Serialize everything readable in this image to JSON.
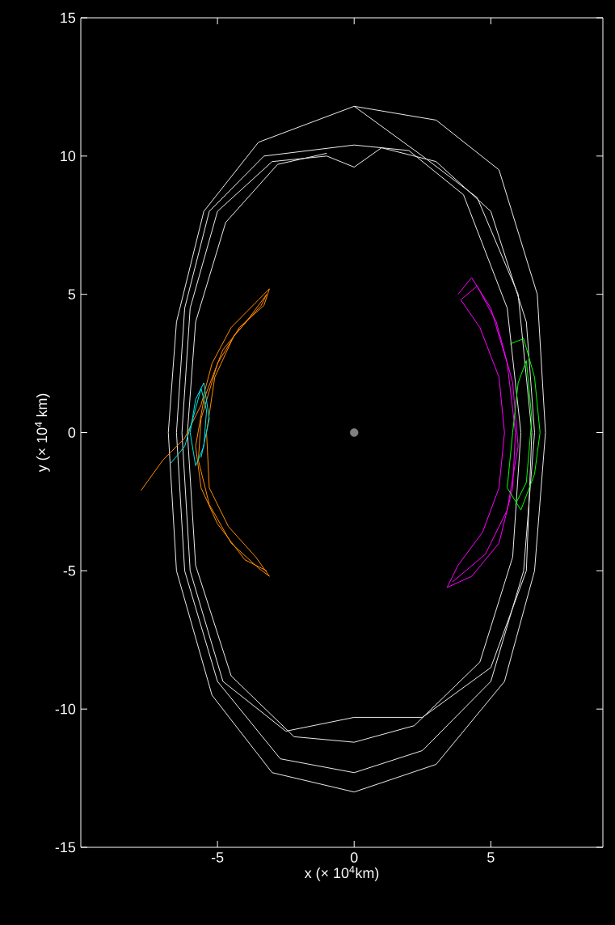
{
  "chart_data": {
    "type": "line",
    "xlabel": "x (× 10$^{4}$km)",
    "ylabel": "y (× 10$^{4}$ km)",
    "xlim": [
      -10,
      9.1
    ],
    "ylim": [
      -15,
      15
    ],
    "xticks": [
      -5,
      0,
      5
    ],
    "yticks": [
      -15,
      -10,
      -5,
      0,
      5,
      10,
      15
    ],
    "grid": false,
    "marker": "none",
    "series": [
      {
        "color": "#ebebeb",
        "x": [
          0,
          3,
          5.3,
          6.7,
          7,
          6.6,
          5.5,
          3,
          0,
          -3,
          -5.2,
          -6.5,
          -6.8,
          -6.5,
          -5.5,
          -3.5,
          0,
          2.5,
          4.5,
          6,
          6.5,
          6.3,
          5,
          2.5,
          0,
          -2.5,
          -4.8,
          -6,
          -6.3,
          -6,
          -5,
          -3,
          -1,
          0,
          1,
          3,
          5,
          6.3,
          6.6,
          6.2,
          5,
          2.5,
          0,
          -2.7,
          -5,
          -6.2,
          -6.5,
          -6.2,
          -5.3,
          -3.3,
          0,
          2,
          4,
          5.6,
          6.1,
          5.8,
          4.6,
          2.2,
          0,
          -2.2,
          -4.5,
          -5.8,
          -6.1,
          -5.8,
          -4.7,
          -2.8,
          -1
        ],
        "values": [
          11.8,
          11.3,
          9.5,
          5,
          0,
          -5,
          -9,
          -12,
          -13,
          -12.3,
          -9.5,
          -5,
          0,
          4,
          8,
          10.5,
          11.8,
          10,
          8.5,
          5,
          0,
          -5,
          -8.5,
          -10.3,
          -10.3,
          -10.8,
          -9,
          -5,
          0,
          4.5,
          8,
          9.8,
          10,
          9.6,
          10.3,
          9.8,
          8,
          4,
          0,
          -5,
          -9,
          -11.5,
          -12.3,
          -11.8,
          -9,
          -5,
          0,
          4.5,
          8,
          10,
          10.4,
          10.2,
          8.6,
          4.5,
          0,
          -4.5,
          -8.3,
          -10.6,
          -11.2,
          -11,
          -8.8,
          -4.8,
          0,
          4,
          7.6,
          9.7,
          10.1
        ]
      },
      {
        "color": "#ff8c00",
        "x": [
          -7.8,
          -7,
          -6.2,
          -5.6,
          -5.2,
          -4.5,
          -3.5,
          -3.1,
          -3.3,
          -4.2,
          -5,
          -5.6,
          -5.7,
          -5.3,
          -4.5,
          -3.5,
          -3.1,
          -3.6,
          -4.6,
          -5.3,
          -5.4,
          -5.1,
          -4.4,
          -3.4,
          -3.2,
          -3.8,
          -4.8,
          -5.5,
          -5.8,
          -5.6,
          -5,
          -4,
          -3.2
        ],
        "values": [
          -2.1,
          -1,
          -0.2,
          1,
          2.5,
          3.8,
          4.8,
          5.2,
          4.6,
          3.8,
          2.5,
          0.5,
          -1,
          -2.6,
          -4,
          -4.9,
          -5.2,
          -4.5,
          -3.4,
          -2,
          0,
          2,
          3.5,
          4.6,
          5,
          4.2,
          3,
          1.2,
          -0.5,
          -2,
          -3.3,
          -4.6,
          -5
        ]
      },
      {
        "color": "#00e5e5",
        "x": [
          -6.7,
          -6.2,
          -5.9,
          -5.6,
          -5.4,
          -5.5,
          -5.8,
          -6,
          -5.8,
          -5.5,
          -5.3,
          -5.6
        ],
        "values": [
          -1.1,
          -0.5,
          0.5,
          1.6,
          0.8,
          -0.5,
          -1.2,
          0,
          1.2,
          1.8,
          0.5,
          -0.9
        ]
      },
      {
        "color": "#ff00ff",
        "x": [
          3.8,
          4.3,
          5,
          5.6,
          5.9,
          5.8,
          5.3,
          4.3,
          3.4,
          3.8,
          4.7,
          5.3,
          5.5,
          5.3,
          4.6,
          3.9,
          4.5,
          5.2,
          5.8,
          6,
          5.6,
          4.8,
          3.6
        ],
        "values": [
          5,
          5.6,
          4.5,
          2.5,
          0,
          -2,
          -4,
          -5.2,
          -5.6,
          -4.8,
          -3.6,
          -2,
          0,
          2,
          3.8,
          4.8,
          5.3,
          4,
          1.8,
          -0.5,
          -2.8,
          -4.4,
          -5.4
        ]
      },
      {
        "color": "#00ff00",
        "x": [
          5.7,
          6.2,
          6.6,
          6.8,
          6.6,
          6.1,
          5.6,
          5.8,
          6,
          6.3,
          6.5,
          6.3,
          5.9
        ],
        "values": [
          3.2,
          3.4,
          2,
          0,
          -1.5,
          -2.8,
          -2,
          0,
          1.8,
          2.6,
          0.5,
          -1.8,
          -2.6
        ]
      },
      {
        "type": "scatter",
        "marker": "circle",
        "color": "#808080",
        "x": [
          0
        ],
        "values": [
          0
        ]
      }
    ]
  }
}
